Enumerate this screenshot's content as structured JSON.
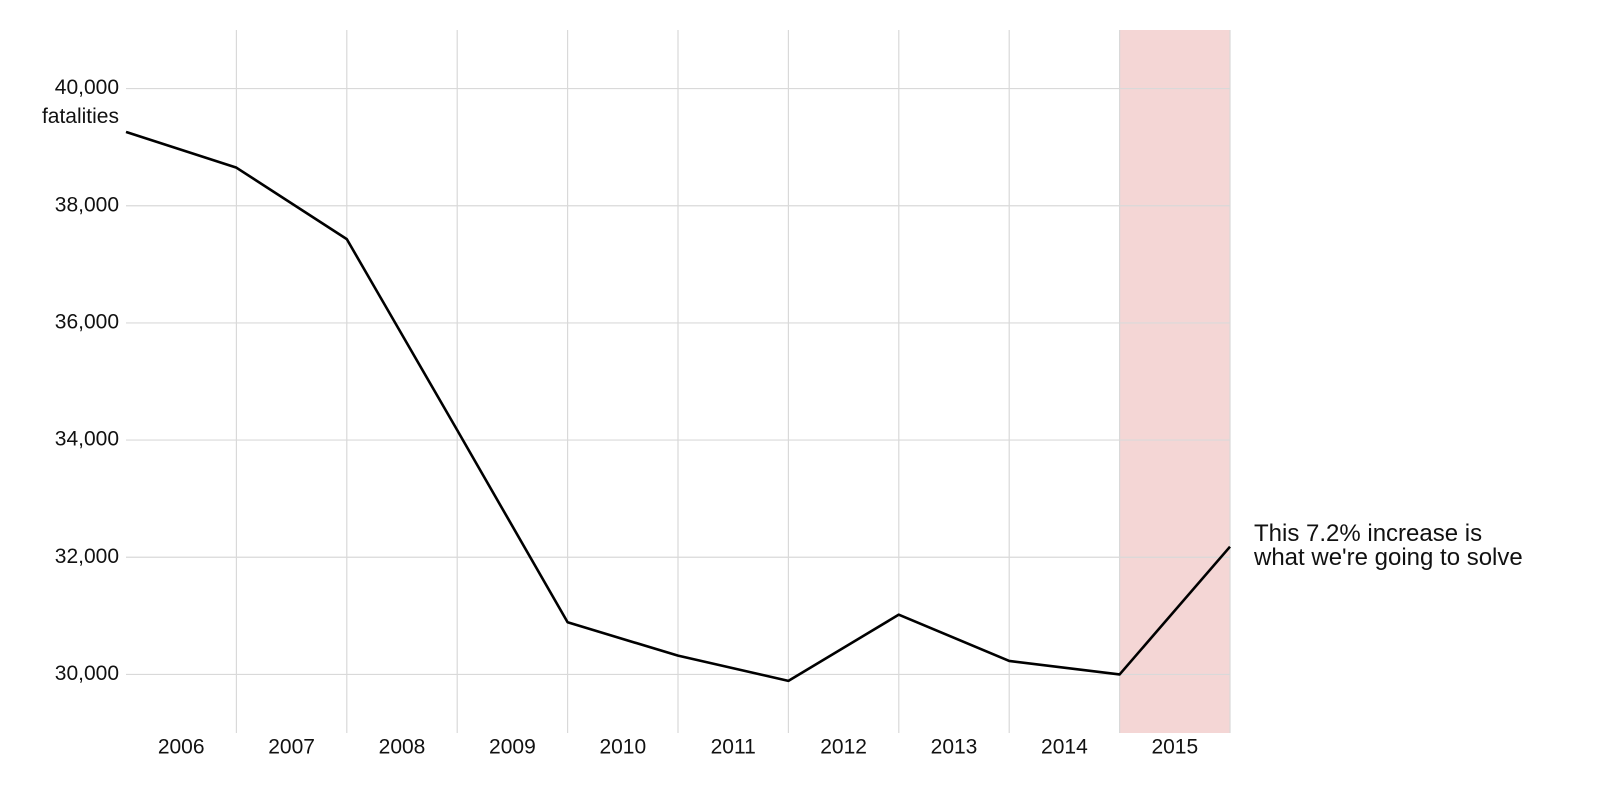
{
  "chart_data": {
    "type": "line",
    "ylabel": "fatalities",
    "categories": [
      null,
      "2006",
      "2007",
      "2008",
      "2009",
      "2010",
      "2011",
      "2012",
      "2013",
      "2014",
      "2015"
    ],
    "values": [
      39260,
      38650,
      37430,
      34170,
      30890,
      30320,
      29890,
      31020,
      30230,
      30000,
      32180
    ],
    "color": "#000000",
    "highlight": "2015",
    "highlight_color": "#f4d6d5",
    "annotation": [
      "This 7.2% increase is",
      "what we're going to solve"
    ],
    "ylim": [
      29000,
      41000
    ],
    "yticks": [
      {
        "value": 30000,
        "label": "30,000"
      },
      {
        "value": 32000,
        "label": "32,000"
      },
      {
        "value": 34000,
        "label": "34,000"
      },
      {
        "value": 36000,
        "label": "36,000"
      },
      {
        "value": 38000,
        "label": "38,000"
      },
      {
        "value": 40000,
        "label": "40,000"
      }
    ],
    "grid": true
  }
}
